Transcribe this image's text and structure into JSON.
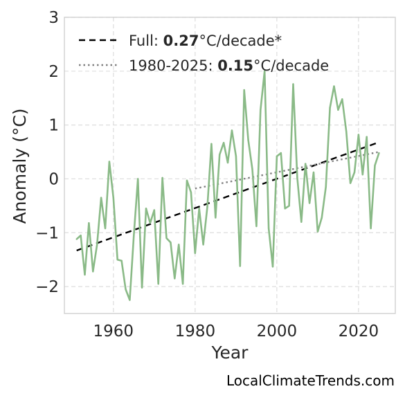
{
  "chart_data": {
    "type": "line",
    "title": "",
    "xlabel": "Year",
    "ylabel": "Anomaly (°C)",
    "xlim": [
      1948,
      2029
    ],
    "ylim": [
      -2.5,
      3
    ],
    "x_ticks": [
      1960,
      1980,
      2000,
      2020
    ],
    "y_ticks": [
      -2,
      -1,
      0,
      1,
      2,
      3
    ],
    "y_tick_labels": [
      "−2",
      "−1",
      "0",
      "1",
      "2",
      "3"
    ],
    "grid": true,
    "legend_position": "top-left",
    "series": [
      {
        "color": "#8aba87",
        "x": [
          1951,
          1952,
          1953,
          1954,
          1955,
          1956,
          1957,
          1958,
          1959,
          1960,
          1961,
          1962,
          1963,
          1964,
          1965,
          1966,
          1967,
          1968,
          1969,
          1970,
          1971,
          1972,
          1973,
          1974,
          1975,
          1976,
          1977,
          1978,
          1979,
          1980,
          1981,
          1982,
          1983,
          1984,
          1985,
          1986,
          1987,
          1988,
          1989,
          1990,
          1991,
          1992,
          1993,
          1994,
          1995,
          1996,
          1997,
          1998,
          1999,
          2000,
          2001,
          2002,
          2003,
          2004,
          2005,
          2006,
          2007,
          2008,
          2009,
          2010,
          2011,
          2012,
          2013,
          2014,
          2015,
          2016,
          2017,
          2018,
          2019,
          2020,
          2021,
          2022,
          2023,
          2024,
          2025
        ],
        "y": [
          -1.12,
          -1.05,
          -1.78,
          -0.82,
          -1.72,
          -1.22,
          -0.35,
          -0.92,
          0.32,
          -0.35,
          -1.5,
          -1.52,
          -2.05,
          -2.25,
          -1.05,
          0.0,
          -2.02,
          -0.55,
          -0.82,
          -0.58,
          -1.95,
          0.02,
          -1.1,
          -1.18,
          -1.85,
          -1.22,
          -1.95,
          -0.03,
          -0.25,
          -1.38,
          -0.55,
          -1.22,
          -0.52,
          0.65,
          -0.72,
          0.45,
          0.67,
          0.3,
          0.9,
          0.42,
          -1.62,
          1.65,
          0.72,
          0.18,
          -0.88,
          1.28,
          2.0,
          -0.92,
          -1.63,
          0.42,
          0.48,
          -0.55,
          -0.5,
          1.76,
          0.02,
          -0.8,
          0.28,
          -0.45,
          0.12,
          -0.98,
          -0.72,
          -0.15,
          1.32,
          1.72,
          1.28,
          1.48,
          0.88,
          -0.08,
          0.12,
          0.82,
          0.08,
          0.78,
          -0.92,
          0.25,
          0.48
        ]
      }
    ],
    "trend_lines": [
      {
        "style": "dashed",
        "color": "#000000",
        "x": [
          1951,
          2025
        ],
        "y": [
          -1.33,
          0.68
        ]
      },
      {
        "style": "dotted",
        "color": "#808080",
        "x": [
          1980,
          2025
        ],
        "y": [
          -0.18,
          0.5
        ]
      }
    ],
    "legend": [
      {
        "style": "dashed",
        "color": "#000000",
        "prefix": "Full: ",
        "bold": "0.27",
        "suffix": "°C/decade*"
      },
      {
        "style": "dotted",
        "color": "#808080",
        "prefix": "1980-2025: ",
        "bold": "0.15",
        "suffix": "°C/decade"
      }
    ],
    "source_note": "LocalClimateTrends.com"
  }
}
